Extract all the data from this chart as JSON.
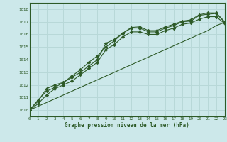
{
  "xlabel": "Graphe pression niveau de la mer (hPa)",
  "bg_color": "#cce8ea",
  "grid_color": "#aacccc",
  "line_color": "#2d5a27",
  "xlim": [
    0,
    23
  ],
  "ylim": [
    1009.5,
    1018.5
  ],
  "yticks": [
    1010,
    1011,
    1012,
    1013,
    1014,
    1015,
    1016,
    1017,
    1018
  ],
  "xticks": [
    0,
    1,
    2,
    3,
    4,
    5,
    6,
    7,
    8,
    9,
    10,
    11,
    12,
    13,
    14,
    15,
    16,
    17,
    18,
    19,
    20,
    21,
    22,
    23
  ],
  "series1": [
    1010.0,
    1010.8,
    1011.5,
    1011.8,
    1012.2,
    1012.6,
    1013.0,
    1013.5,
    1014.0,
    1015.3,
    1015.6,
    1016.1,
    1016.5,
    1016.5,
    1016.2,
    1016.2,
    1016.5,
    1016.7,
    1017.0,
    1017.05,
    1017.5,
    1017.6,
    1017.65,
    1016.95
  ],
  "series2": [
    1010.0,
    1010.7,
    1011.7,
    1012.0,
    1012.2,
    1012.7,
    1013.2,
    1013.8,
    1014.3,
    1015.0,
    1015.5,
    1016.1,
    1016.55,
    1016.6,
    1016.3,
    1016.3,
    1016.6,
    1016.8,
    1017.05,
    1017.15,
    1017.55,
    1017.7,
    1017.7,
    1017.0
  ],
  "series3": [
    1010.0,
    1010.5,
    1011.2,
    1011.7,
    1012.0,
    1012.3,
    1012.8,
    1013.3,
    1013.8,
    1014.8,
    1015.2,
    1015.8,
    1016.2,
    1016.2,
    1016.0,
    1016.0,
    1016.3,
    1016.5,
    1016.8,
    1016.9,
    1017.2,
    1017.4,
    1017.4,
    1016.85
  ],
  "series_linear": [
    1010.0,
    1010.3,
    1010.6,
    1010.9,
    1011.2,
    1011.5,
    1011.8,
    1012.1,
    1012.4,
    1012.7,
    1013.0,
    1013.3,
    1013.6,
    1013.9,
    1014.2,
    1014.5,
    1014.8,
    1015.1,
    1015.4,
    1015.7,
    1016.0,
    1016.3,
    1016.7,
    1016.95
  ]
}
